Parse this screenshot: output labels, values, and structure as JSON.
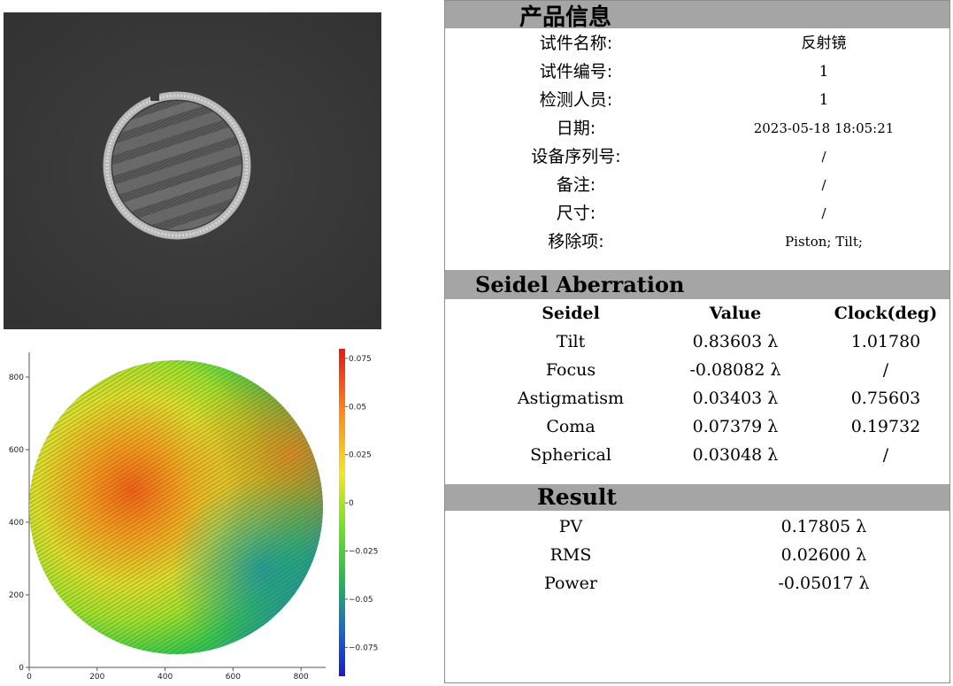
{
  "product_info": {
    "title": "产品信息",
    "rows": [
      {
        "label": "试件名称:",
        "value": "反射镜"
      },
      {
        "label": "试件编号:",
        "value": "1"
      },
      {
        "label": "检测人员:",
        "value": "1"
      },
      {
        "label": "日期:",
        "value": "2023-05-18 18:05:21"
      },
      {
        "label": "设备序列号:",
        "value": "/"
      },
      {
        "label": "备注:",
        "value": "/"
      },
      {
        "label": "尺寸:",
        "value": "/"
      },
      {
        "label": "移除项:",
        "value": "Piston; Tilt;"
      }
    ]
  },
  "seidel": {
    "title": "Seidel Aberration",
    "headers": [
      "Seidel",
      "Value",
      "Clock(deg)"
    ],
    "rows": [
      {
        "name": "Tilt",
        "value": "0.83603 λ",
        "clock": "1.01780"
      },
      {
        "name": "Focus",
        "value": "-0.08082 λ",
        "clock": "/"
      },
      {
        "name": "Astigmatism",
        "value": "0.03403 λ",
        "clock": "0.75603"
      },
      {
        "name": "Coma",
        "value": "0.07379 λ",
        "clock": "0.19732"
      },
      {
        "name": "Spherical",
        "value": "0.03048 λ",
        "clock": "/"
      }
    ]
  },
  "result": {
    "title": "Result",
    "rows": [
      {
        "name": "PV",
        "value": "0.17805 λ"
      },
      {
        "name": "RMS",
        "value": "0.02600 λ"
      },
      {
        "name": "Power",
        "value": "-0.05017 λ"
      }
    ]
  },
  "surface_map": {
    "x_ticks": [
      "0",
      "200",
      "400",
      "600",
      "800"
    ],
    "y_ticks": [
      "0",
      "200",
      "400",
      "600",
      "800"
    ],
    "colorbar_ticks": [
      "0.075",
      "0.05",
      "0.025",
      "0",
      "−0.025",
      "−0.05",
      "−0.075"
    ],
    "colorbar_range": [
      -0.09,
      0.08
    ]
  }
}
